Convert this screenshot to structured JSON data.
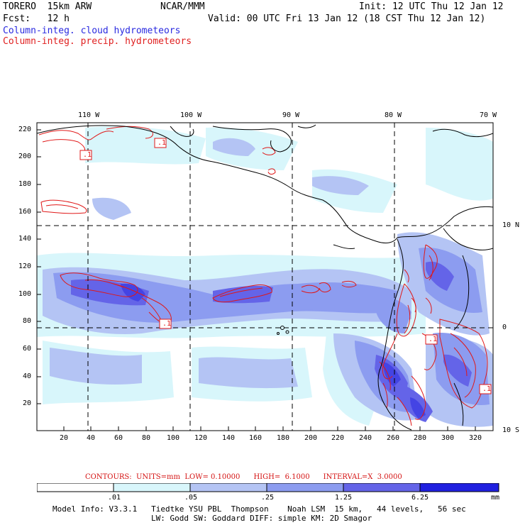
{
  "header": {
    "model": "TORERO  15km ARW",
    "center": "NCAR/MMM",
    "init": "Init: 12 UTC Thu 12 Jan 12",
    "fcst": "Fcst:   12 h",
    "valid": "Valid: 00 UTC Fri 13 Jan 12 (18 CST Thu 12 Jan 12)",
    "field1": "Column-integ. cloud hydrometeors",
    "field2": "Column-integ. precip. hydrometeors"
  },
  "colors": {
    "cloud_label": "#2a2ae0",
    "precip_label": "#e02020",
    "contour": "#e01818",
    "coast": "#000000",
    "shade_levels": [
      "#ffffff",
      "#d8f6fb",
      "#b4c4f4",
      "#8c9cf0",
      "#6464e8",
      "#4444e4",
      "#2020e0"
    ]
  },
  "top_lon_labels": [
    "110 W",
    "100 W",
    "90 W",
    "80 W",
    "70 W"
  ],
  "right_lat_labels": [
    "10 N",
    "0",
    "10 S"
  ],
  "left_y_ticks": [
    "220",
    "200",
    "180",
    "160",
    "140",
    "120",
    "100",
    "80",
    "60",
    "40",
    "20"
  ],
  "bottom_x_ticks": [
    "20",
    "40",
    "60",
    "80",
    "100",
    "120",
    "140",
    "160",
    "180",
    "200",
    "220",
    "240",
    "260",
    "280",
    "300",
    "320"
  ],
  "contour_labels": [
    ".1",
    ".1",
    ".1",
    ".1",
    ".1"
  ],
  "contours_info": "CONTOURS:  UNITS=mm  LOW= 0.10000      HIGH=  6.1000      INTERVAL=X  3.0000",
  "colorbar": {
    "labels": [
      ".01",
      ".05",
      ".25",
      "1.25",
      "6.25"
    ],
    "units": "mm"
  },
  "footer": {
    "line1": "Model Info: V3.3.1   Tiedtke YSU PBL  Thompson    Noah LSM  15 km,   44 levels,   56 sec",
    "line2": "LW: Godd SW: Goddard DIFF: simple KM: 2D Smagor"
  }
}
